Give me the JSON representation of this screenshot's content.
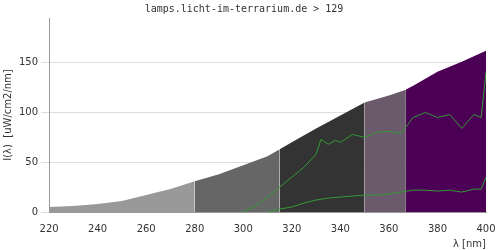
{
  "chart_data": {
    "type": "area",
    "title": "lamps.licht-im-terrarium.de > 129",
    "x_label": "λ [nm]",
    "y_label": "I(λ)  [uW/cm2/nm]",
    "xlim": [
      220,
      400
    ],
    "xticks": [
      220,
      240,
      260,
      280,
      300,
      320,
      340,
      360,
      380,
      400
    ],
    "ylim": [
      0,
      195
    ],
    "yticks": [
      0,
      50,
      100,
      150
    ],
    "grid": true,
    "series": [
      {
        "type": "area",
        "color": "#999999",
        "x": [
          220,
          230,
          240,
          250,
          260,
          270,
          280
        ],
        "values": [
          5,
          6,
          8,
          11,
          17,
          23,
          31
        ]
      },
      {
        "type": "area",
        "color": "#666666",
        "x": [
          280,
          290,
          300,
          310,
          315
        ],
        "values": [
          31,
          38,
          47,
          56,
          63
        ]
      },
      {
        "type": "area",
        "color": "#333333",
        "x": [
          315,
          320,
          330,
          340,
          350
        ],
        "values": [
          63,
          70,
          84,
          97,
          110
        ]
      },
      {
        "type": "area",
        "color": "#6b5a6b",
        "x": [
          350,
          360,
          367
        ],
        "values": [
          110,
          117,
          123
        ]
      },
      {
        "type": "area",
        "color": "#4b0055",
        "x": [
          367,
          370,
          380,
          390,
          400
        ],
        "values": [
          123,
          127,
          141,
          151,
          162
        ]
      },
      {
        "type": "line",
        "color": "#339933",
        "x": [
          300,
          305,
          310,
          315,
          320,
          325,
          330,
          332,
          335,
          338,
          340,
          345,
          350,
          355,
          360,
          365,
          370,
          375,
          380,
          385,
          390,
          395,
          398,
          400
        ],
        "values": [
          0,
          6,
          15,
          25,
          35,
          45,
          58,
          73,
          68,
          72,
          70,
          78,
          75,
          80,
          81,
          79,
          95,
          100,
          95,
          98,
          84,
          98,
          95,
          140
        ]
      },
      {
        "type": "line",
        "color": "#339933",
        "x": [
          310,
          315,
          320,
          325,
          330,
          335,
          340,
          345,
          350,
          355,
          360,
          365,
          370,
          375,
          380,
          385,
          390,
          395,
          398,
          400
        ],
        "values": [
          0,
          3,
          5,
          9,
          12,
          14,
          15,
          16,
          17,
          17,
          18,
          20,
          22,
          22,
          21,
          22,
          20,
          23,
          23,
          35
        ]
      }
    ]
  }
}
